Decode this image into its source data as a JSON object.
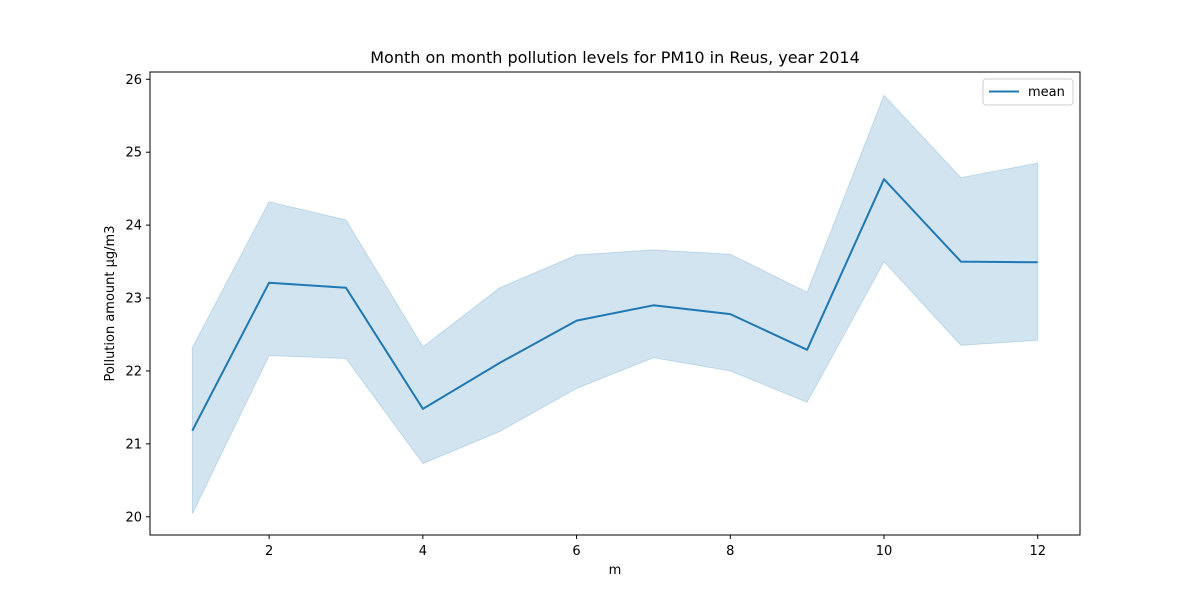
{
  "chart_data": {
    "type": "line",
    "title": "Month on month pollution levels for PM10 in Reus, year 2014",
    "xlabel": "m",
    "ylabel": "Pollution amount µg/m3",
    "xlim": [
      0.45,
      12.55
    ],
    "ylim": [
      19.75,
      26.1
    ],
    "xticks": [
      2,
      4,
      6,
      8,
      10,
      12
    ],
    "yticks": [
      20,
      21,
      22,
      23,
      24,
      25,
      26
    ],
    "grid": false,
    "legend": {
      "position": "top-right"
    },
    "x": [
      1,
      2,
      3,
      4,
      5,
      6,
      7,
      8,
      9,
      10,
      11,
      12
    ],
    "series": [
      {
        "name": "mean",
        "color": "#1f77b4",
        "values": [
          21.18,
          23.21,
          23.14,
          21.48,
          22.11,
          22.69,
          22.9,
          22.78,
          22.29,
          24.63,
          23.5,
          23.49
        ],
        "ci_upper": [
          22.32,
          24.32,
          24.07,
          22.33,
          23.14,
          23.59,
          23.66,
          23.6,
          23.08,
          25.78,
          24.65,
          24.85
        ],
        "ci_lower": [
          20.04,
          22.21,
          22.17,
          20.73,
          21.17,
          21.76,
          22.18,
          22.0,
          21.57,
          23.5,
          22.35,
          22.42
        ],
        "band_color": "#1f77b4"
      }
    ]
  }
}
